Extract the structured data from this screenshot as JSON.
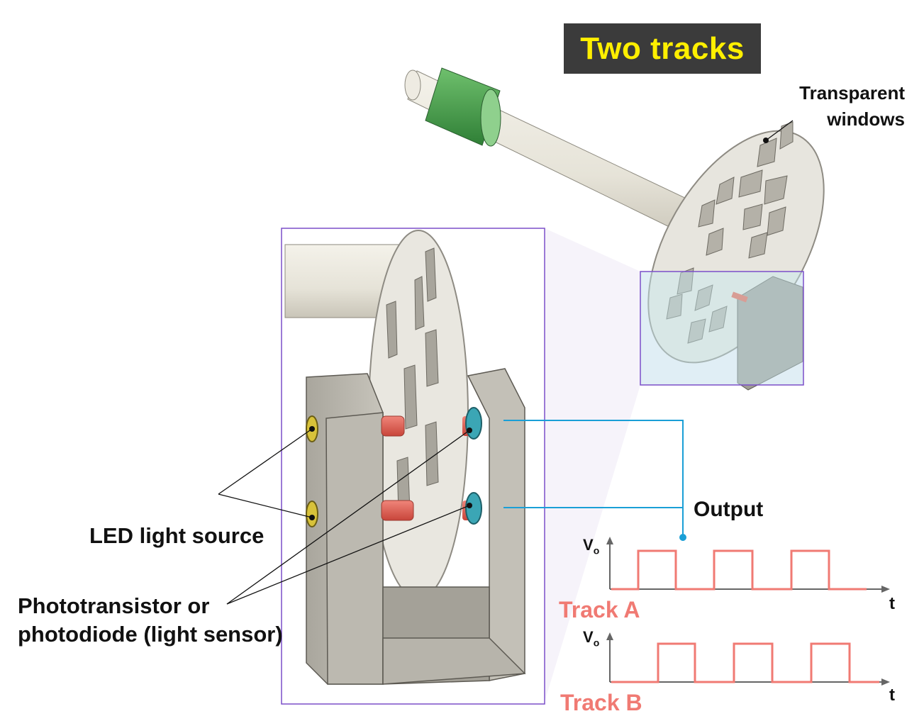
{
  "title": "Two tracks",
  "labels": {
    "transparent_windows_1": "Transparent",
    "transparent_windows_2": "windows",
    "output": "Output",
    "led": "LED light source",
    "sensor_1": "Phototransistor or",
    "sensor_2": "photodiode (light sensor)"
  },
  "plots": [
    {
      "track_label": "Track A",
      "v_label": "V",
      "v_sub": "o",
      "t_label": "t"
    },
    {
      "track_label": "Track B",
      "v_label": "V",
      "v_sub": "o",
      "t_label": "t"
    }
  ],
  "colors": {
    "title_bg": "#3b3b3b",
    "title_text": "#ffef00",
    "signal": "#f07a73",
    "output_wire": "#1a9fd6",
    "frame": "#7b4fc9",
    "housing": "#b9b6ae",
    "shaft": "#e9e6dc",
    "collar": "#4caa4c",
    "led": "#d8c23a",
    "sensor": "#3ba6b5",
    "rod": "#e8604c"
  }
}
